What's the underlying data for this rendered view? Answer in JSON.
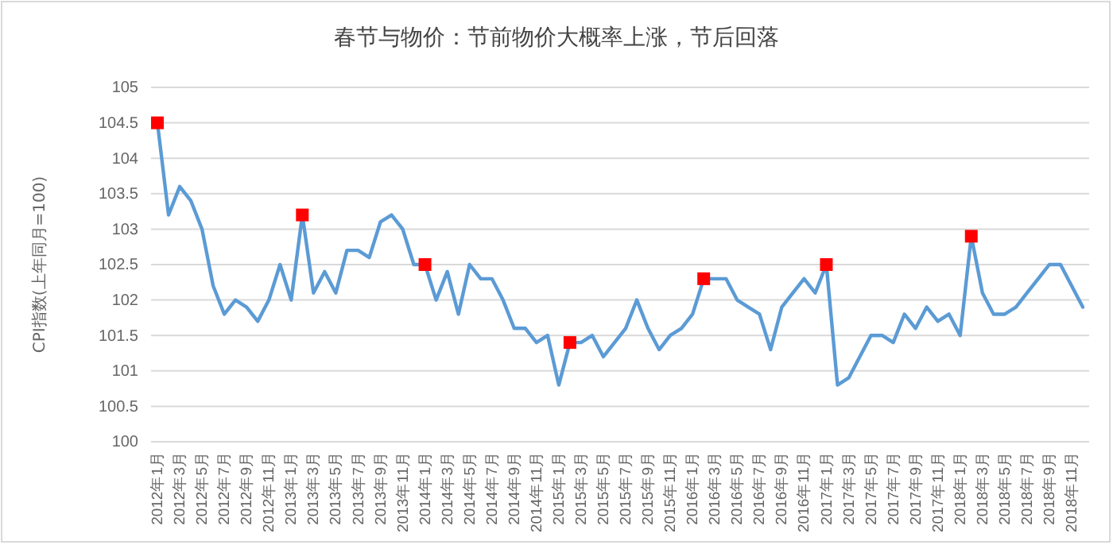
{
  "chart_data": {
    "type": "line",
    "title": "春节与物价：节前物价大概率上涨，节后回落",
    "ylabel": "CPI指数(上年同月=100)",
    "categories": [
      "2012年1月",
      null,
      "2012年3月",
      null,
      "2012年5月",
      null,
      "2012年7月",
      null,
      "2012年9月",
      null,
      "2012年11月",
      null,
      "2013年1月",
      null,
      "2013年3月",
      null,
      "2013年5月",
      null,
      "2013年7月",
      null,
      "2013年9月",
      null,
      "2013年11月",
      null,
      "2014年1月",
      null,
      "2014年3月",
      null,
      "2014年5月",
      null,
      "2014年7月",
      null,
      "2014年9月",
      null,
      "2014年11月",
      null,
      "2015年1月",
      null,
      "2015年3月",
      null,
      "2015年5月",
      null,
      "2015年7月",
      null,
      "2015年9月",
      null,
      "2015年11月",
      null,
      "2016年1月",
      null,
      "2016年3月",
      null,
      "2016年5月",
      null,
      "2016年7月",
      null,
      "2016年9月",
      null,
      "2016年11月",
      null,
      "2017年1月",
      null,
      "2017年3月",
      null,
      "2017年5月",
      null,
      "2017年7月",
      null,
      "2017年9月",
      null,
      "2017年11月",
      null,
      "2018年1月",
      null,
      "2018年3月",
      null,
      "2018年5月",
      null,
      "2018年7月",
      null,
      "2018年9月",
      null,
      "2018年11月",
      null
    ],
    "series": [
      {
        "type": "line",
        "color": "#5b9bd5",
        "marker": "none",
        "values": [
          104.5,
          103.2,
          103.6,
          103.4,
          103.0,
          102.2,
          101.8,
          102.0,
          101.9,
          101.7,
          102.0,
          102.5,
          102.0,
          103.2,
          102.1,
          102.4,
          102.1,
          102.7,
          102.7,
          102.6,
          103.1,
          103.2,
          103.0,
          102.5,
          102.5,
          102.0,
          102.4,
          101.8,
          102.5,
          102.3,
          102.3,
          102.0,
          101.6,
          101.6,
          101.4,
          101.5,
          100.8,
          101.4,
          101.4,
          101.5,
          101.2,
          101.4,
          101.6,
          102.0,
          101.6,
          101.3,
          101.5,
          101.6,
          101.8,
          102.3,
          102.3,
          102.3,
          102.0,
          101.9,
          101.8,
          101.3,
          101.9,
          102.1,
          102.3,
          102.1,
          102.5,
          100.8,
          100.9,
          101.2,
          101.5,
          101.5,
          101.4,
          101.8,
          101.6,
          101.9,
          101.7,
          101.8,
          101.5,
          102.9,
          102.1,
          101.8,
          101.8,
          101.9,
          102.1,
          102.3,
          102.5,
          102.5,
          102.2,
          101.9
        ]
      },
      {
        "type": "scatter",
        "color": "#ff0000",
        "marker": "square",
        "values": [
          104.5,
          null,
          null,
          null,
          null,
          null,
          null,
          null,
          null,
          null,
          null,
          null,
          null,
          103.2,
          null,
          null,
          null,
          null,
          null,
          null,
          null,
          null,
          null,
          null,
          102.5,
          null,
          null,
          null,
          null,
          null,
          null,
          null,
          null,
          null,
          null,
          null,
          null,
          101.4,
          null,
          null,
          null,
          null,
          null,
          null,
          null,
          null,
          null,
          null,
          null,
          102.3,
          null,
          null,
          null,
          null,
          null,
          null,
          null,
          null,
          null,
          null,
          102.5,
          null,
          null,
          null,
          null,
          null,
          null,
          null,
          null,
          null,
          null,
          null,
          null,
          102.9,
          null,
          null,
          null,
          null,
          null,
          null,
          null,
          null,
          null,
          null
        ]
      }
    ],
    "ylim": [
      100,
      105
    ],
    "yticks": [
      100,
      100.5,
      101,
      101.5,
      102,
      102.5,
      103,
      103.5,
      104,
      104.5,
      105
    ],
    "grid": "y"
  }
}
